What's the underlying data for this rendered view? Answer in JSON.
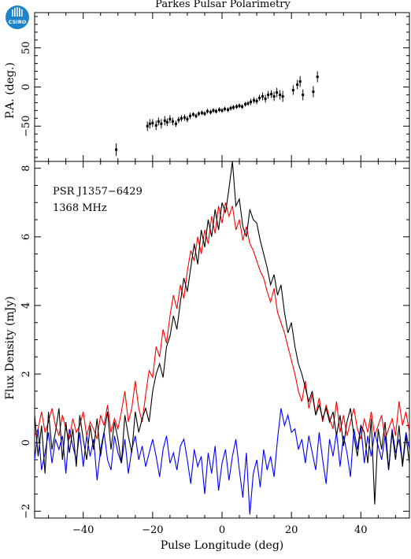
{
  "header": {
    "title": "Parkes Pulsar Polarimetry",
    "logo_text": "CSIRO"
  },
  "chart_data": [
    {
      "type": "scatter",
      "panel": "position-angle",
      "ylabel": "P.A. (deg.)",
      "xlim": [
        -54,
        54
      ],
      "ylim": [
        -95,
        95
      ],
      "yticks": [
        -50,
        0,
        50
      ],
      "points": [
        {
          "x": -30.5,
          "y": -80,
          "err": 8
        },
        {
          "x": -21.5,
          "y": -50,
          "err": 6
        },
        {
          "x": -20.8,
          "y": -47,
          "err": 6
        },
        {
          "x": -20.0,
          "y": -46,
          "err": 5
        },
        {
          "x": -19.0,
          "y": -49,
          "err": 6
        },
        {
          "x": -18.3,
          "y": -44,
          "err": 5
        },
        {
          "x": -17.5,
          "y": -47,
          "err": 6
        },
        {
          "x": -16.5,
          "y": -43,
          "err": 6
        },
        {
          "x": -15.8,
          "y": -45,
          "err": 5
        },
        {
          "x": -15.0,
          "y": -41,
          "err": 5
        },
        {
          "x": -14.2,
          "y": -44,
          "err": 5
        },
        {
          "x": -13.3,
          "y": -47,
          "err": 4
        },
        {
          "x": -12.5,
          "y": -42,
          "err": 4
        },
        {
          "x": -11.7,
          "y": -40,
          "err": 4
        },
        {
          "x": -10.8,
          "y": -39,
          "err": 4
        },
        {
          "x": -10.0,
          "y": -41,
          "err": 4
        },
        {
          "x": -9.2,
          "y": -37,
          "err": 4
        },
        {
          "x": -8.3,
          "y": -35,
          "err": 3
        },
        {
          "x": -7.5,
          "y": -37,
          "err": 3
        },
        {
          "x": -6.7,
          "y": -34,
          "err": 3
        },
        {
          "x": -5.8,
          "y": -33,
          "err": 3
        },
        {
          "x": -5.0,
          "y": -34,
          "err": 3
        },
        {
          "x": -4.2,
          "y": -31,
          "err": 3
        },
        {
          "x": -3.3,
          "y": -32,
          "err": 3
        },
        {
          "x": -2.5,
          "y": -30,
          "err": 3
        },
        {
          "x": -1.7,
          "y": -31,
          "err": 3
        },
        {
          "x": -0.8,
          "y": -29,
          "err": 3
        },
        {
          "x": 0.0,
          "y": -30,
          "err": 3
        },
        {
          "x": 0.8,
          "y": -28,
          "err": 3
        },
        {
          "x": 1.7,
          "y": -29,
          "err": 3
        },
        {
          "x": 2.5,
          "y": -27,
          "err": 3
        },
        {
          "x": 3.3,
          "y": -26,
          "err": 3
        },
        {
          "x": 4.2,
          "y": -25,
          "err": 3
        },
        {
          "x": 5.0,
          "y": -24,
          "err": 3
        },
        {
          "x": 5.8,
          "y": -25,
          "err": 3
        },
        {
          "x": 6.7,
          "y": -22,
          "err": 3
        },
        {
          "x": 7.5,
          "y": -21,
          "err": 3
        },
        {
          "x": 8.3,
          "y": -19,
          "err": 4
        },
        {
          "x": 9.2,
          "y": -17,
          "err": 4
        },
        {
          "x": 10.0,
          "y": -18,
          "err": 4
        },
        {
          "x": 10.8,
          "y": -14,
          "err": 4
        },
        {
          "x": 11.7,
          "y": -12,
          "err": 5
        },
        {
          "x": 12.5,
          "y": -15,
          "err": 5
        },
        {
          "x": 13.3,
          "y": -10,
          "err": 5
        },
        {
          "x": 14.2,
          "y": -9,
          "err": 5
        },
        {
          "x": 15.0,
          "y": -12,
          "err": 6
        },
        {
          "x": 15.8,
          "y": -7,
          "err": 6
        },
        {
          "x": 16.7,
          "y": -10,
          "err": 6
        },
        {
          "x": 17.5,
          "y": -12,
          "err": 7
        },
        {
          "x": 20.5,
          "y": -4,
          "err": 6
        },
        {
          "x": 21.7,
          "y": 3,
          "err": 6
        },
        {
          "x": 22.5,
          "y": 7,
          "err": 7
        },
        {
          "x": 23.3,
          "y": -10,
          "err": 7
        },
        {
          "x": 26.3,
          "y": -6,
          "err": 7
        },
        {
          "x": 27.5,
          "y": 13,
          "err": 7
        }
      ]
    },
    {
      "type": "line",
      "panel": "flux-profile",
      "xlabel": "Pulse Longitude (deg)",
      "ylabel": "Flux Density (mJy)",
      "xlim": [
        -54,
        54
      ],
      "ylim": [
        -2.2,
        8.2
      ],
      "xticks": [
        -40,
        -20,
        0,
        20,
        40
      ],
      "yticks": [
        -2,
        0,
        2,
        4,
        6,
        8
      ],
      "annotations": [
        "PSR J1357−6429",
        "1368 MHz"
      ],
      "x_start": -54,
      "x_step": 1,
      "series": [
        {
          "color": "#000000",
          "values": [
            0.8,
            -0.4,
            0.5,
            -0.9,
            0.9,
            -0.2,
            0.3,
            1.0,
            -0.5,
            0.6,
            -0.3,
            0.4,
            -0.7,
            0.8,
            0.1,
            -0.5,
            0.5,
            -0.2,
            0.7,
            -0.4,
            0.3,
            0.9,
            -0.2,
            0.6,
            0.1,
            -0.6,
            0.8,
            0.2,
            -0.3,
            0.9,
            0.3,
            0.7,
            1.0,
            0.6,
            1.5,
            2.0,
            2.3,
            1.9,
            2.8,
            3.1,
            3.7,
            3.3,
            4.1,
            4.8,
            4.4,
            5.1,
            5.8,
            5.2,
            6.2,
            5.7,
            6.5,
            6.0,
            6.8,
            6.2,
            7.0,
            6.7,
            7.4,
            8.2,
            6.9,
            7.1,
            6.3,
            6.0,
            6.8,
            6.5,
            6.4,
            5.9,
            5.5,
            5.1,
            4.6,
            4.9,
            4.3,
            4.6,
            3.8,
            3.2,
            3.5,
            2.8,
            2.3,
            2.0,
            1.6,
            1.2,
            1.5,
            0.8,
            1.1,
            0.7,
            1.0,
            0.6,
            0.9,
            0.2,
            0.8,
            -0.1,
            0.6,
            1.0,
            0.2,
            -0.4,
            0.5,
            0.3,
            -0.6,
            0.7,
            -1.8,
            0.4,
            -0.2,
            0.6,
            -0.8,
            0.3,
            -0.5,
            0.5,
            -0.7,
            0.2,
            -0.6
          ]
        },
        {
          "color": "#ff0000",
          "values": [
            0.2,
            0.4,
            0.9,
            0.3,
            0.6,
            1.0,
            0.5,
            0.2,
            0.8,
            0.4,
            0.1,
            0.7,
            0.3,
            0.5,
            0.9,
            0.2,
            0.6,
            0.4,
            0.1,
            0.8,
            0.5,
            1.1,
            0.3,
            0.7,
            0.4,
            0.9,
            1.5,
            0.6,
            1.0,
            1.8,
            1.0,
            0.6,
            1.4,
            2.1,
            1.9,
            2.8,
            2.5,
            3.3,
            2.9,
            3.7,
            4.3,
            3.9,
            4.6,
            4.2,
            5.0,
            5.6,
            5.3,
            6.0,
            5.5,
            6.2,
            5.8,
            6.6,
            6.1,
            6.9,
            6.4,
            7.0,
            6.6,
            6.9,
            6.2,
            6.5,
            5.9,
            6.3,
            5.8,
            5.6,
            5.3,
            5.0,
            4.8,
            4.4,
            4.1,
            4.5,
            3.8,
            3.5,
            3.2,
            2.8,
            2.4,
            2.0,
            1.5,
            1.2,
            1.8,
            1.0,
            1.4,
            0.8,
            1.3,
            0.6,
            1.1,
            0.7,
            0.4,
            1.2,
            0.3,
            0.8,
            0.2,
            0.6,
            1.0,
            0.4,
            0.1,
            0.7,
            0.3,
            0.9,
            0.2,
            0.5,
            0.8,
            0.1,
            0.4,
            0.7,
            0.2,
            1.2,
            0.5,
            0.9,
            0.3
          ]
        },
        {
          "color": "#0000ff",
          "values": [
            -0.5,
            0.4,
            -0.8,
            -0.3,
            0.3,
            -0.6,
            0.1,
            -0.2,
            0.2,
            -0.9,
            0.4,
            -0.1,
            -0.5,
            0.3,
            -0.7,
            0.2,
            -0.4,
            0.1,
            -1.1,
            -0.2,
            0.3,
            -0.5,
            -0.8,
            0.2,
            -0.3,
            -0.6,
            0.1,
            -0.9,
            -0.2,
            0.2,
            -0.5,
            -0.1,
            -0.7,
            -0.3,
            0.1,
            -0.4,
            -1.0,
            -0.2,
            0.2,
            -0.6,
            -0.3,
            -0.8,
            -0.1,
            0.1,
            -0.5,
            -1.2,
            -0.2,
            -0.7,
            -0.4,
            -1.5,
            -0.3,
            -0.9,
            -0.1,
            -1.4,
            -0.6,
            -0.2,
            -1.1,
            -0.4,
            0.1,
            -0.8,
            -1.6,
            -0.3,
            -2.1,
            -0.9,
            -0.5,
            -1.3,
            -0.2,
            -0.8,
            -0.4,
            -1.0,
            0.1,
            1.0,
            0.5,
            0.8,
            0.3,
            0.4,
            -0.2,
            0.1,
            -0.6,
            0.2,
            -0.3,
            -0.8,
            0.3,
            -0.5,
            -1.2,
            0.1,
            -0.4,
            0.3,
            -0.7,
            0.2,
            -0.3,
            -1.0,
            0.4,
            -0.2,
            0.5,
            -0.6,
            0.2,
            -0.4,
            0.3,
            -0.1,
            -0.5,
            0.2,
            -0.8,
            0.4,
            -0.3,
            0.1,
            -0.6,
            0.3,
            -0.2
          ]
        }
      ]
    }
  ]
}
